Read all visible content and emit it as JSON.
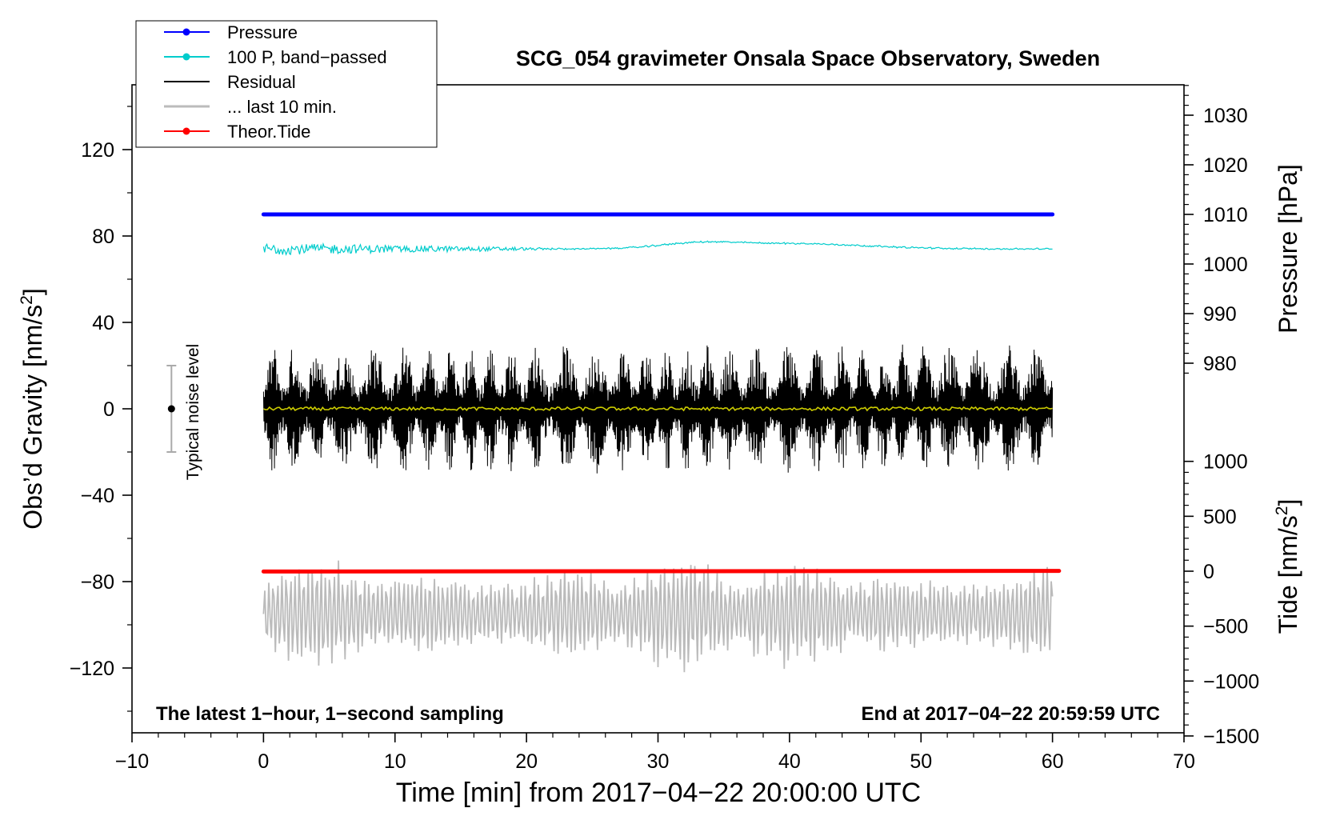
{
  "chart_data": {
    "type": "line",
    "title": "SCG_054 gravimeter Onsala Space Observatory, Sweden",
    "xlabel": "Time [min] from 2017−04−22 20:00:00 UTC",
    "ylabel_left": "Obs’d Gravity [nm/s",
    "ylabel_left_sup": "2",
    "ylabel_left_close": "]",
    "ylabel_right_top": "Pressure [hPa]",
    "ylabel_right_bottom": "Tide [nm/s",
    "ylabel_right_bottom_sup": "2",
    "ylabel_right_bottom_close": "]",
    "xlim": [
      -10,
      70
    ],
    "ylim_left": [
      -150,
      150
    ],
    "x_ticks": [
      "−10",
      "0",
      "10",
      "20",
      "30",
      "40",
      "50",
      "60",
      "70"
    ],
    "x_tick_values": [
      -10,
      0,
      10,
      20,
      30,
      40,
      50,
      60,
      70
    ],
    "y_ticks_left": [
      "120",
      "80",
      "40",
      "0",
      "−40",
      "−80",
      "−120"
    ],
    "y_tick_values_left": [
      120,
      80,
      40,
      0,
      -40,
      -80,
      -120
    ],
    "pressure_axis": {
      "ticks": [
        "1030",
        "1020",
        "1010",
        "1000",
        "990",
        "980"
      ],
      "tick_values": [
        1030,
        1020,
        1010,
        1000,
        990,
        980
      ],
      "range": [
        980,
        1030
      ]
    },
    "tide_axis": {
      "ticks": [
        "1000",
        "500",
        "0",
        "−500",
        "−1000",
        "−1500"
      ],
      "tick_values": [
        1000,
        500,
        0,
        -500,
        -1000,
        -1500
      ],
      "range": [
        -1500,
        1000
      ]
    },
    "annotation_left": "The latest 1−hour, 1−second sampling",
    "annotation_right": "End at 2017−04−22 20:59:59 UTC",
    "noise_label": "Typical noise level",
    "noise_bar": {
      "x": -7,
      "center": 0,
      "half_range": 20
    },
    "legend": {
      "placement": "top-left",
      "entries": [
        {
          "label": "Pressure",
          "color": "#0000ff",
          "marker": true
        },
        {
          "label": "100 P, band−passed",
          "color": "#00cccc",
          "marker": true
        },
        {
          "label": "Residual",
          "color": "#000000",
          "marker": false
        },
        {
          "label": "... last 10 min.",
          "color": "#bbbbbb",
          "marker": false
        },
        {
          "label": "Theor.Tide",
          "color": "#ff0000",
          "marker": true
        }
      ]
    },
    "series": [
      {
        "name": "Pressure",
        "axis": "pressure",
        "color": "#0000ff",
        "x_range": [
          0,
          60
        ],
        "value": 1010.0
      },
      {
        "name": "100 P, band−passed",
        "axis": "gravity",
        "color": "#00cccc",
        "x_range": [
          0,
          60
        ],
        "value": 74,
        "amplitude": 4
      },
      {
        "name": "Residual",
        "axis": "gravity",
        "color": "#000000",
        "x_range": [
          0,
          60
        ],
        "value": 0,
        "amplitude": 30
      },
      {
        "name": "Residual mean",
        "axis": "gravity",
        "color": "#cccc00",
        "x_range": [
          0,
          60
        ],
        "value": 0,
        "amplitude": 1
      },
      {
        "name": "... last 10 min.",
        "axis": "gravity",
        "color": "#bbbbbb",
        "x_range": [
          0,
          60
        ],
        "value": -95,
        "amplitude": 28
      },
      {
        "name": "Theor.Tide",
        "axis": "tide",
        "color": "#ff0000",
        "x_range": [
          0,
          60.5
        ],
        "values_start_end": [
          -3,
          3
        ]
      }
    ]
  }
}
